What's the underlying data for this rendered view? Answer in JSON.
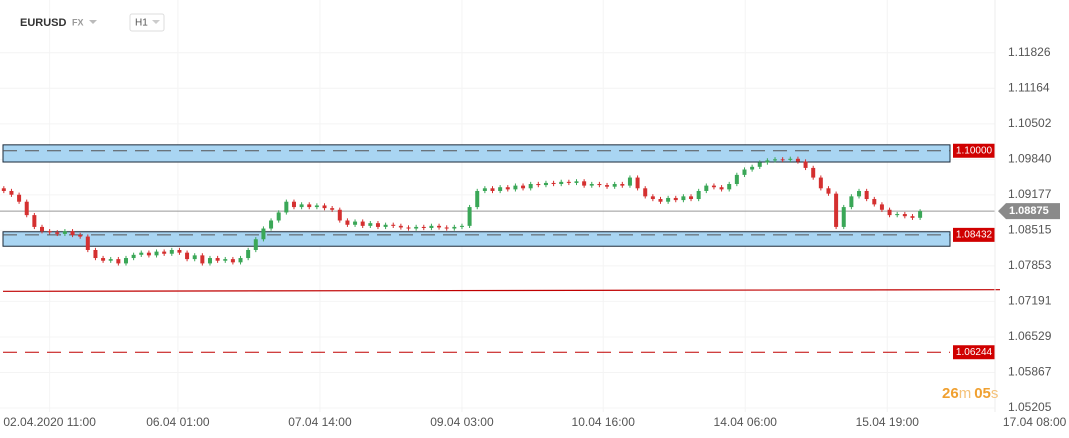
{
  "chart_data": {
    "type": "candlestick",
    "symbol": "EURUSD",
    "market": "FX",
    "timeframe": "H1",
    "countdown": {
      "minutes": "26",
      "minutes_unit": "m",
      "seconds": "05",
      "seconds_unit": "s"
    },
    "up_color": "#3aa757",
    "down_color": "#d43030",
    "grid": true,
    "xlim": [
      0,
      140
    ],
    "ylim": [
      1.0513,
      1.1281
    ],
    "xticks": [
      {
        "value": 6.5,
        "label": "02.04.2020 11:00"
      },
      {
        "value": 23.3,
        "label": "06.04 01:00"
      },
      {
        "value": 41.9,
        "label": "07.04 14:00"
      },
      {
        "value": 60.5,
        "label": "09.04 03:00"
      },
      {
        "value": 79,
        "label": "10.04 16:00"
      },
      {
        "value": 97.6,
        "label": "14.04 06:00"
      },
      {
        "value": 116.2,
        "label": "15.04 19:00"
      },
      {
        "value": 135.5,
        "label": "17.04 08:00"
      }
    ],
    "yticks": [
      1.11826,
      1.11164,
      1.10502,
      {
        "value": 1.0984,
        "label": "1.09840"
      },
      1.09177,
      1.08515,
      1.07853,
      1.07191,
      1.06529,
      1.05867,
      1.05205
    ],
    "current_price": 1.08875,
    "zones": [
      {
        "low": 1.0979,
        "high": 1.1011,
        "level": {
          "value": 1.1,
          "label": "1.10000"
        }
      },
      {
        "low": 1.0822,
        "high": 1.0849,
        "level": 1.08432
      }
    ],
    "levels": [
      1.06244
    ],
    "trendline": [
      1.0738,
      1.0741
    ],
    "open": [
      1.093,
      1.0925,
      1.0918,
      1.0905,
      1.088,
      1.0858,
      1.085,
      1.0848,
      1.0845,
      1.085,
      1.0843,
      1.084,
      1.0815,
      1.08,
      1.0795,
      1.0798,
      1.079,
      1.08,
      1.0806,
      1.081,
      1.0805,
      1.0812,
      1.0808,
      1.0815,
      1.081,
      1.0798,
      1.0805,
      1.079,
      1.08,
      1.0795,
      1.0798,
      1.0792,
      1.08,
      1.0815,
      1.0835,
      1.0855,
      1.087,
      1.0885,
      1.0905,
      1.0895,
      1.09,
      1.0895,
      1.0898,
      1.0893,
      1.089,
      1.087,
      1.0862,
      1.0868,
      1.086,
      1.0865,
      1.0858,
      1.0862,
      1.086,
      1.0857,
      1.0855,
      1.0858,
      1.0856,
      1.086,
      1.0857,
      1.0855,
      1.0858,
      1.086,
      1.0895,
      1.0925,
      1.093,
      1.0925,
      1.0932,
      1.0928,
      1.0935,
      1.093,
      1.0938,
      1.0936,
      1.094,
      1.0938,
      1.0942,
      1.094,
      1.0943,
      1.0935,
      1.0938,
      1.0936,
      1.0933,
      1.0938,
      1.0935,
      1.095,
      1.093,
      1.0915,
      1.091,
      1.0905,
      1.0912,
      1.0908,
      1.0915,
      1.091,
      1.0925,
      1.0935,
      1.0932,
      1.0928,
      1.0938,
      1.0955,
      1.0965,
      1.097,
      1.0978,
      1.0982,
      1.0984,
      1.0983,
      1.0985,
      1.098,
      1.0968,
      1.095,
      1.093,
      1.092,
      1.0858,
      1.0895,
      1.0915,
      1.0925,
      1.091,
      1.09,
      1.089,
      1.088,
      1.0882,
      1.0878,
      1.0875
    ],
    "high": [
      1.0934,
      1.0929,
      1.0922,
      1.0909,
      1.0884,
      1.0862,
      1.0854,
      1.0852,
      1.0854,
      1.0854,
      1.0847,
      1.0844,
      1.0819,
      1.0804,
      1.0802,
      1.0802,
      1.0804,
      1.081,
      1.0814,
      1.0814,
      1.0816,
      1.0816,
      1.0819,
      1.0819,
      1.0814,
      1.0809,
      1.0809,
      1.0804,
      1.0804,
      1.0802,
      1.0802,
      1.0804,
      1.0819,
      1.0839,
      1.0859,
      1.0874,
      1.0889,
      1.0909,
      1.0909,
      1.0904,
      1.0904,
      1.0902,
      1.0902,
      1.0897,
      1.0894,
      1.0874,
      1.0872,
      1.0872,
      1.0869,
      1.0869,
      1.0866,
      1.0866,
      1.0864,
      1.0861,
      1.0862,
      1.0862,
      1.0864,
      1.0864,
      1.0861,
      1.0862,
      1.0864,
      1.0899,
      1.0929,
      1.0934,
      1.0934,
      1.0936,
      1.0936,
      1.0939,
      1.0939,
      1.0942,
      1.0942,
      1.0944,
      1.0944,
      1.0946,
      1.0946,
      1.0947,
      1.0947,
      1.0942,
      1.0942,
      1.094,
      1.0942,
      1.0942,
      1.0954,
      1.0954,
      1.0934,
      1.0919,
      1.0914,
      1.0916,
      1.0916,
      1.0919,
      1.0919,
      1.0929,
      1.0939,
      1.0939,
      1.0936,
      1.0942,
      1.0959,
      1.0969,
      1.0974,
      1.0982,
      1.0986,
      1.0988,
      1.0988,
      1.0989,
      1.0989,
      1.0984,
      1.0972,
      1.0954,
      1.0934,
      1.0924,
      1.0899,
      1.0919,
      1.0929,
      1.0929,
      1.0914,
      1.0904,
      1.0894,
      1.0886,
      1.0886,
      1.0882,
      1.0891
    ],
    "low": [
      1.0921,
      1.0914,
      1.0901,
      1.0876,
      1.0854,
      1.0846,
      1.0844,
      1.0841,
      1.0841,
      1.0839,
      1.0836,
      1.0811,
      1.0796,
      1.0791,
      1.0791,
      1.0786,
      1.0786,
      1.0796,
      1.0802,
      1.0801,
      1.0801,
      1.0804,
      1.0804,
      1.0806,
      1.0794,
      1.0794,
      1.0786,
      1.0786,
      1.0791,
      1.0791,
      1.0788,
      1.0788,
      1.0796,
      1.0811,
      1.0831,
      1.0851,
      1.0866,
      1.0881,
      1.0891,
      1.0891,
      1.0891,
      1.0891,
      1.0889,
      1.0886,
      1.0866,
      1.0858,
      1.0858,
      1.0856,
      1.0856,
      1.0854,
      1.0854,
      1.0856,
      1.0853,
      1.0851,
      1.0851,
      1.0852,
      1.0852,
      1.0853,
      1.0851,
      1.0851,
      1.0854,
      1.0856,
      1.0891,
      1.0921,
      1.0921,
      1.0921,
      1.0924,
      1.0924,
      1.0926,
      1.0926,
      1.0932,
      1.0932,
      1.0934,
      1.0934,
      1.0936,
      1.0936,
      1.0931,
      1.0931,
      1.0932,
      1.0929,
      1.0929,
      1.0931,
      1.0931,
      1.0926,
      1.0911,
      1.0906,
      1.0901,
      1.0901,
      1.0904,
      1.0904,
      1.0906,
      1.0906,
      1.0921,
      1.0928,
      1.0924,
      1.0924,
      1.0934,
      1.0951,
      1.0961,
      1.0966,
      1.0974,
      1.0978,
      1.0979,
      1.0979,
      1.0976,
      1.0964,
      1.0946,
      1.0926,
      1.0916,
      1.0854,
      1.0854,
      1.0891,
      1.0911,
      1.0906,
      1.0896,
      1.0886,
      1.0876,
      1.0876,
      1.0874,
      1.0871,
      1.0871
    ],
    "close": [
      1.0925,
      1.0918,
      1.0905,
      1.088,
      1.0858,
      1.085,
      1.0848,
      1.0845,
      1.085,
      1.0843,
      1.084,
      1.0815,
      1.08,
      1.0795,
      1.0798,
      1.079,
      1.08,
      1.0806,
      1.081,
      1.0805,
      1.0812,
      1.0808,
      1.0815,
      1.081,
      1.0798,
      1.0805,
      1.079,
      1.08,
      1.0795,
      1.0798,
      1.0792,
      1.08,
      1.0815,
      1.0835,
      1.0855,
      1.087,
      1.0885,
      1.0905,
      1.0895,
      1.09,
      1.0895,
      1.0898,
      1.0893,
      1.089,
      1.087,
      1.0862,
      1.0868,
      1.086,
      1.0865,
      1.0858,
      1.0862,
      1.086,
      1.0857,
      1.0855,
      1.0858,
      1.0856,
      1.086,
      1.0857,
      1.0855,
      1.0858,
      1.086,
      1.0895,
      1.0925,
      1.093,
      1.0925,
      1.0932,
      1.0928,
      1.0935,
      1.093,
      1.0938,
      1.0936,
      1.094,
      1.0938,
      1.0942,
      1.094,
      1.0943,
      1.0935,
      1.0938,
      1.0936,
      1.0933,
      1.0938,
      1.0935,
      1.095,
      1.093,
      1.0915,
      1.091,
      1.0905,
      1.0912,
      1.0908,
      1.0915,
      1.091,
      1.0925,
      1.0935,
      1.0932,
      1.0928,
      1.0938,
      1.0955,
      1.0965,
      1.097,
      1.0978,
      1.0982,
      1.0984,
      1.0983,
      1.0985,
      1.098,
      1.0968,
      1.095,
      1.093,
      1.092,
      1.0858,
      1.0895,
      1.0915,
      1.0925,
      1.091,
      1.09,
      1.089,
      1.088,
      1.0882,
      1.0878,
      1.0875,
      1.08875
    ]
  }
}
